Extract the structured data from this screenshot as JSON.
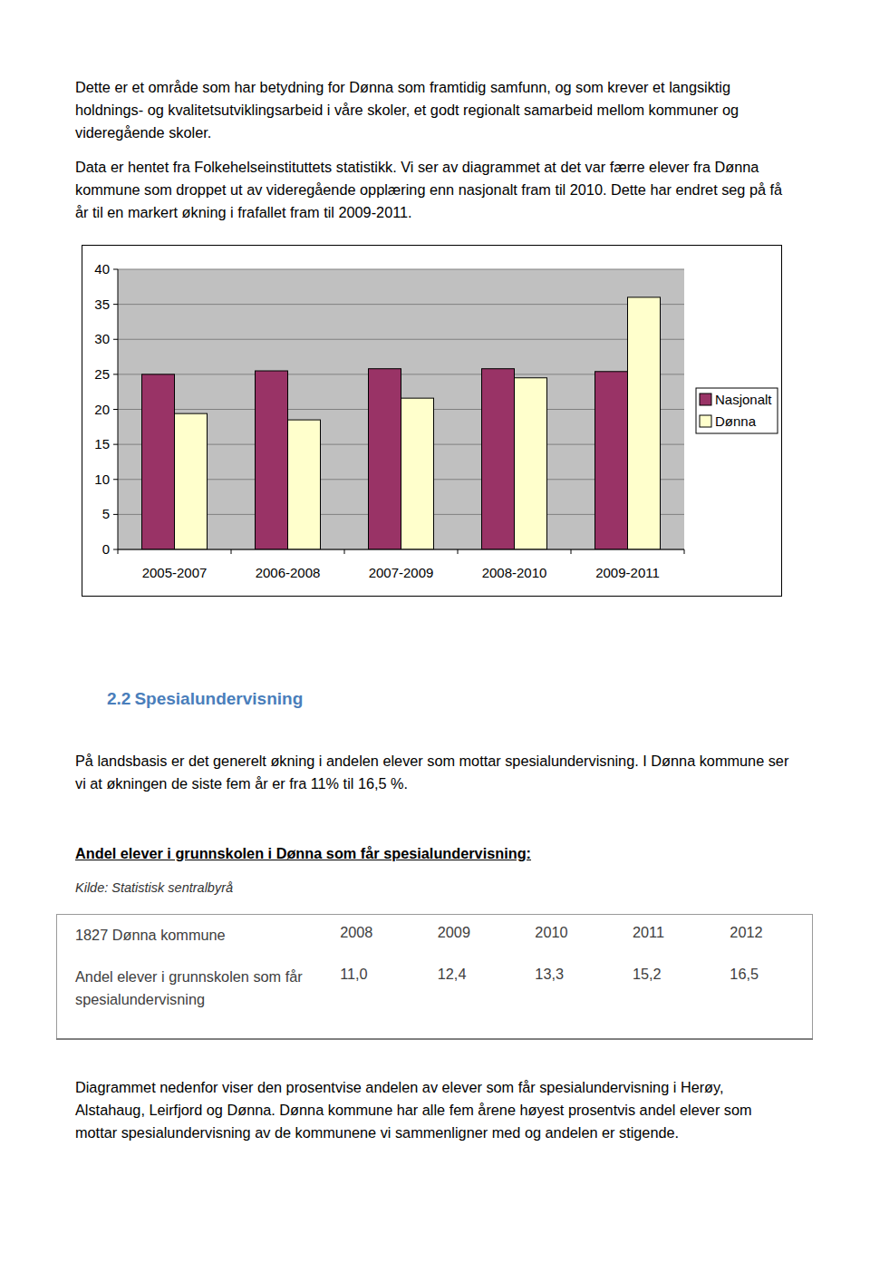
{
  "paragraphs": [
    "Dette er et område som har betydning for Dønna som framtidig samfunn, og som krever et langsiktig holdnings- og kvalitetsutviklingsarbeid i våre skoler, et godt regionalt samarbeid mellom kommuner og videregående skoler.",
    "Data er hentet fra Folkehelseinstituttets statistikk. Vi ser av diagrammet at det var færre elever fra Dønna kommune som droppet ut av videregående opplæring enn nasjonalt fram til 2010. Dette har endret seg på få år til en markert økning i frafallet fram til 2009-2011."
  ],
  "chart_data": {
    "type": "bar",
    "categories": [
      "2005-2007",
      "2006-2008",
      "2007-2009",
      "2008-2010",
      "2009-2011"
    ],
    "series": [
      {
        "name": "Nasjonalt",
        "color": "#993366",
        "values": [
          25.0,
          25.5,
          25.8,
          25.8,
          25.4
        ]
      },
      {
        "name": "Dønna",
        "color": "#FFFFCC",
        "values": [
          19.4,
          18.5,
          21.6,
          24.5,
          36.0
        ]
      }
    ],
    "ylim": [
      0,
      40
    ],
    "yticks": [
      0,
      5,
      10,
      15,
      20,
      25,
      30,
      35,
      40
    ],
    "grid": true,
    "legend": "right"
  },
  "section": {
    "number": "2.2",
    "title": "Spesialundervisning",
    "paragraph": "På landsbasis er det generelt økning i andelen elever som mottar spesialundervisning. I Dønna kommune ser vi at økningen de siste fem år er fra 11% til 16,5 %.",
    "caption": "Andel elever i grunnskolen i Dønna som får spesialundervisning:",
    "source": "Kilde: Statistisk sentralbyrå",
    "table": {
      "rows": [
        [
          "1827 Dønna kommune",
          "2008",
          "2009",
          "2010",
          "2011",
          "2012"
        ],
        [
          "Andel elever i grunnskolen som får spesialundervisning",
          "11,0",
          "12,4",
          "13,3",
          "15,2",
          "16,5"
        ]
      ]
    },
    "closing": "Diagrammet nedenfor viser den prosentvise andelen av elever som får spesialundervisning i Herøy, Alstahaug, Leirfjord og Dønna. Dønna kommune har alle fem årene høyest prosentvis andel elever som mottar spesialundervisning av de kommunene vi sammenligner med og andelen er stigende."
  }
}
